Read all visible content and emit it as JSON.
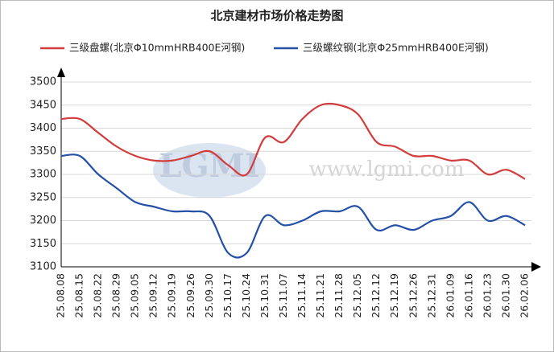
{
  "chart_data": {
    "type": "line",
    "title": "北京建材市场价格走势图",
    "categories": [
      "25.08.08",
      "25.08.15",
      "25.08.22",
      "25.08.29",
      "25.09.05",
      "25.09.12",
      "25.09.19",
      "25.09.26",
      "25.09.30",
      "25.10.17",
      "25.10.24",
      "25.10.31",
      "25.11.07",
      "25.11.14",
      "25.11.21",
      "25.11.28",
      "25.12.05",
      "25.12.12",
      "25.12.19",
      "25.12.26",
      "25.12.31",
      "26.01.09",
      "26.01.16",
      "26.01.23",
      "26.01.30",
      "26.02.06"
    ],
    "series": [
      {
        "name": "三级盘螺(北京Φ10mmHRB400E河钢)",
        "color": "#d23c3c",
        "values": [
          3420,
          3420,
          3390,
          3360,
          3340,
          3330,
          3330,
          3340,
          3350,
          3320,
          3300,
          3380,
          3370,
          3420,
          3450,
          3450,
          3430,
          3370,
          3360,
          3340,
          3340,
          3330,
          3330,
          3300,
          3310,
          3290
        ]
      },
      {
        "name": "三级螺纹钢(北京Φ25mmHRB400E河钢)",
        "color": "#2450a8",
        "values": [
          3340,
          3340,
          3300,
          3270,
          3240,
          3230,
          3220,
          3220,
          3210,
          3130,
          3130,
          3210,
          3190,
          3200,
          3220,
          3220,
          3230,
          3180,
          3190,
          3180,
          3200,
          3210,
          3240,
          3200,
          3210,
          3190
        ]
      }
    ],
    "ylim": [
      3100,
      3500
    ],
    "yticks": [
      3100,
      3150,
      3200,
      3250,
      3300,
      3350,
      3400,
      3450,
      3500
    ],
    "grid": true
  }
}
